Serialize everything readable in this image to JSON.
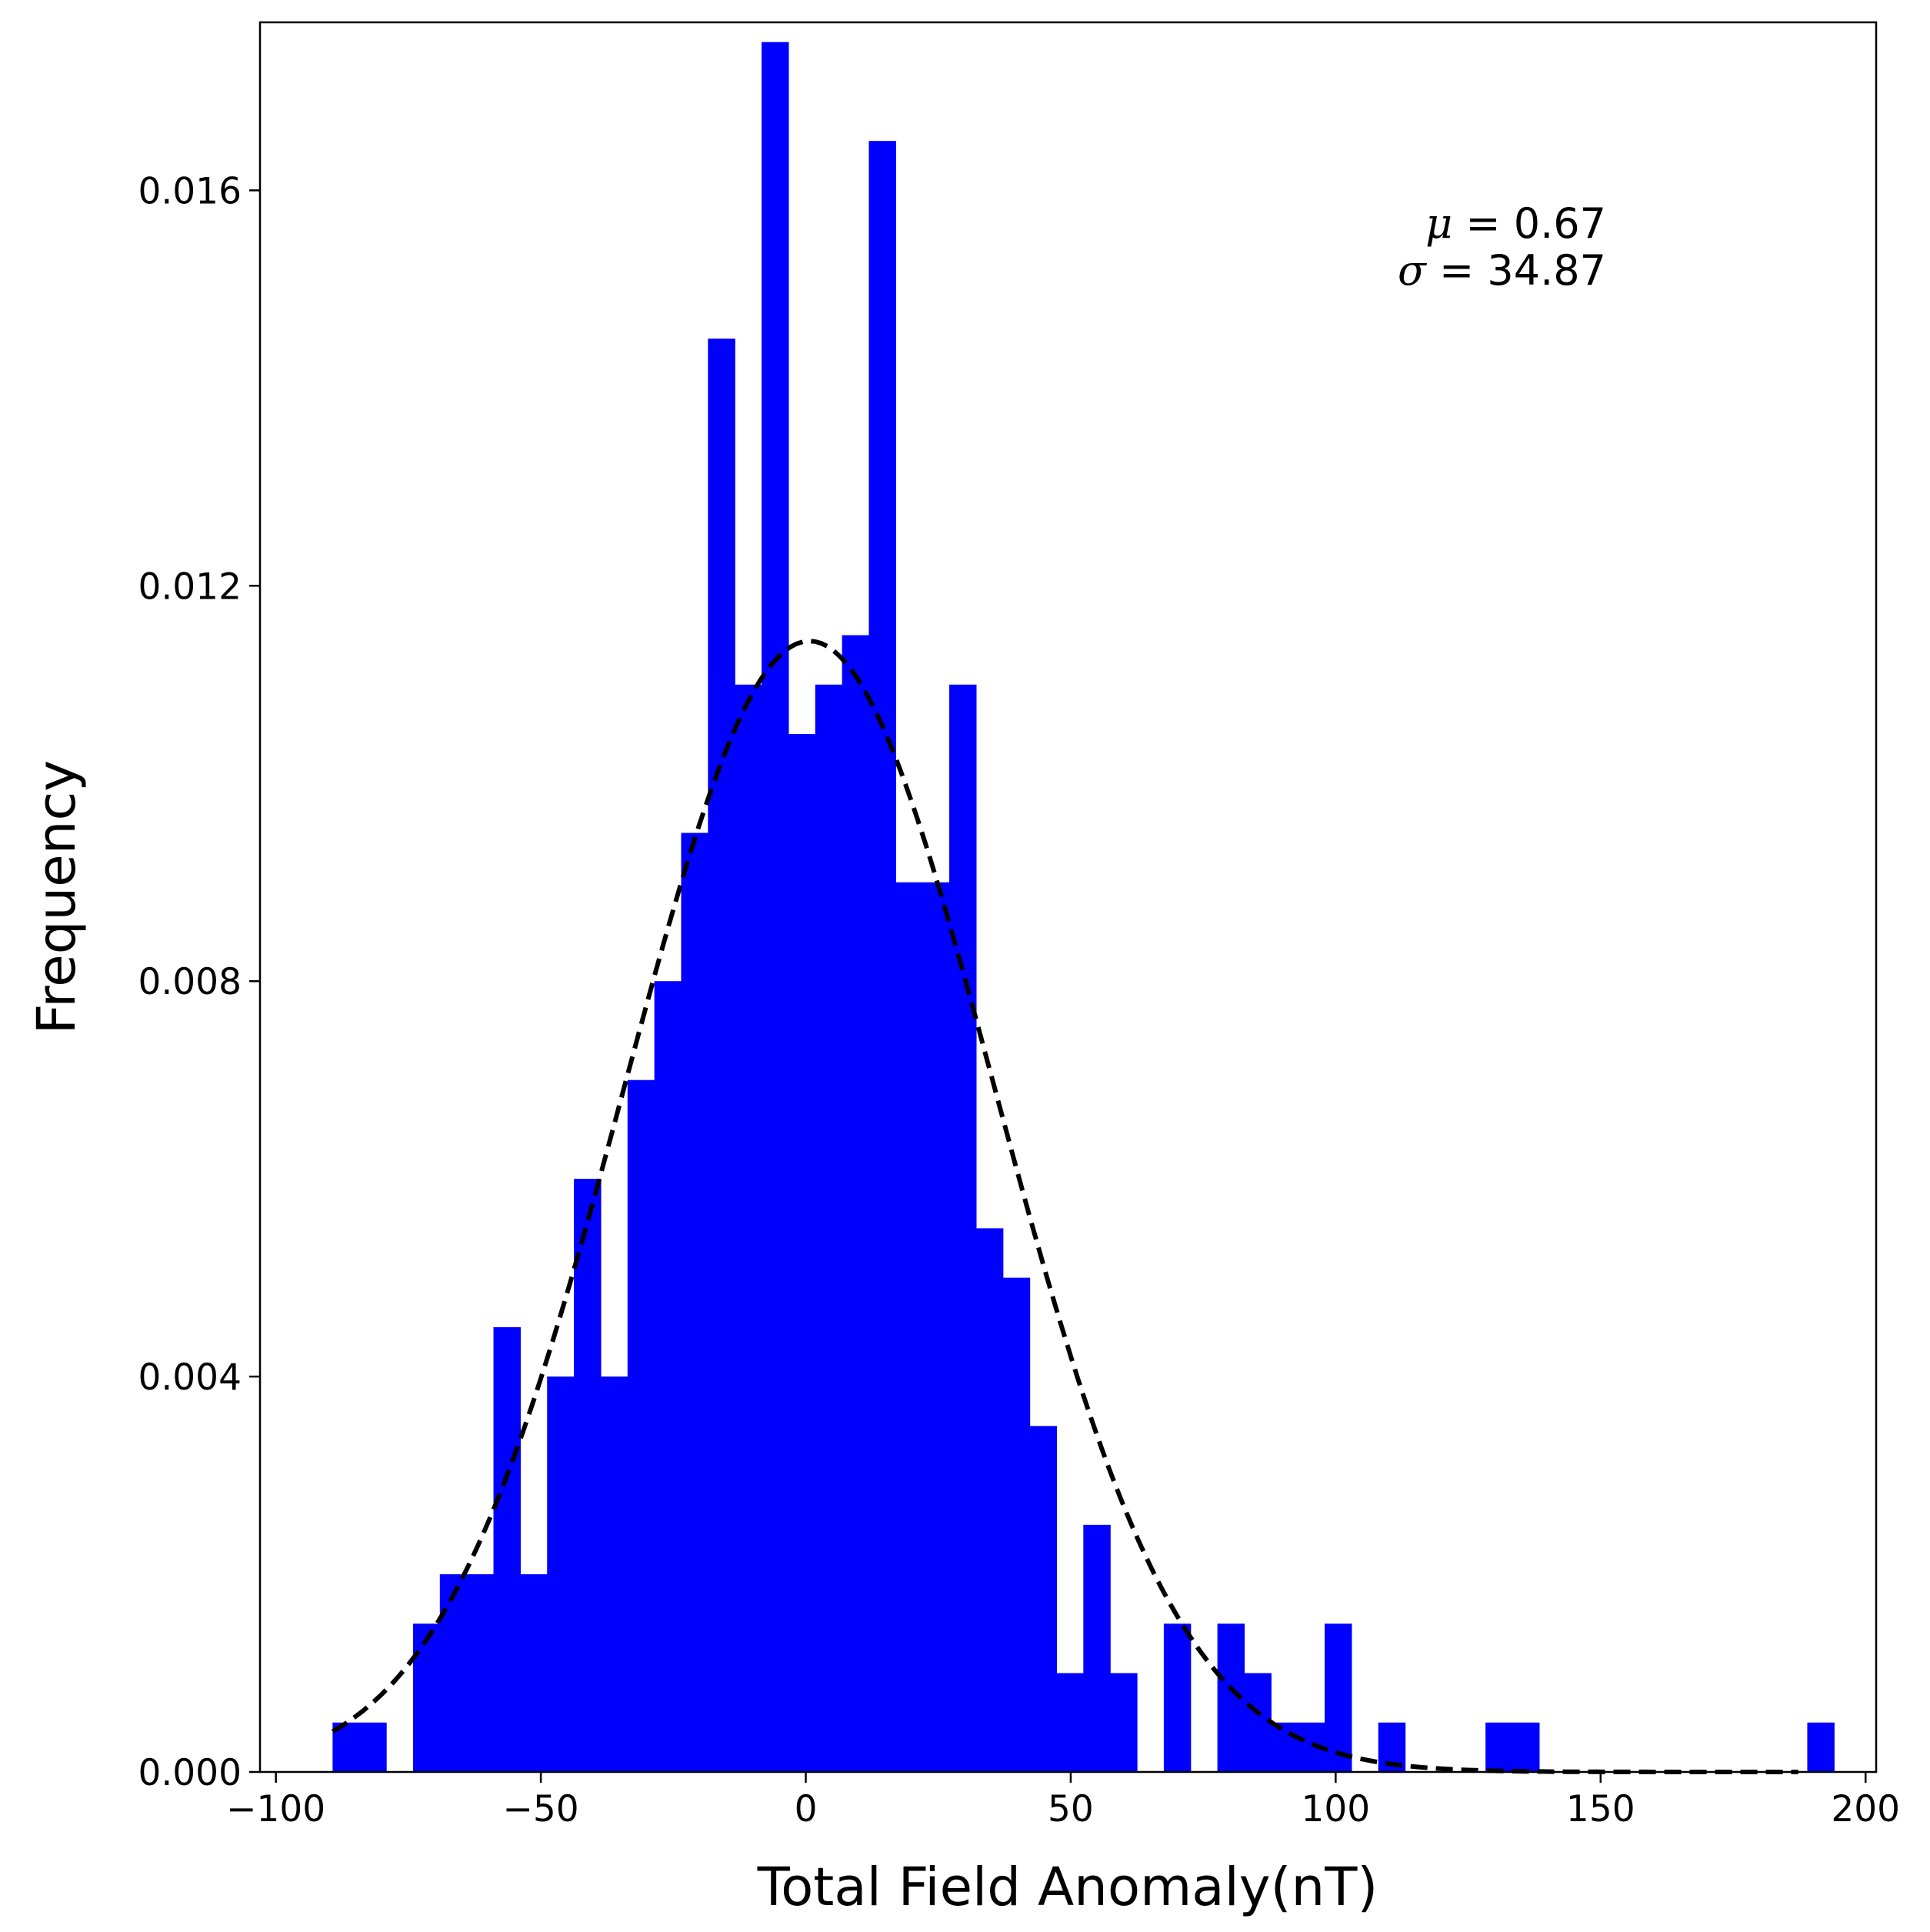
{
  "chart_data": {
    "type": "bar",
    "subtype": "histogram",
    "xlabel": "Total Field Anomaly(nT)",
    "ylabel": "Frequency",
    "xlim": [
      -103,
      202
    ],
    "ylim": [
      0,
      0.0177
    ],
    "xticks": [
      -100,
      -50,
      0,
      50,
      100,
      150,
      200
    ],
    "xtick_labels": [
      "−100",
      "−50",
      "0",
      "50",
      "100",
      "150",
      "200"
    ],
    "yticks": [
      0,
      0.004,
      0.008,
      0.012,
      0.016
    ],
    "ytick_labels": [
      "0.000",
      "0.004",
      "0.008",
      "0.012",
      "0.016"
    ],
    "grid": false,
    "bar_color": "#0000ff",
    "bins": {
      "start": -89.3,
      "width": 5.06,
      "values": [
        0.0005,
        0.0005,
        0,
        0.0015,
        0.002,
        0.002,
        0.0045,
        0.002,
        0.004,
        0.006,
        0.004,
        0.007,
        0.008,
        0.0095,
        0.0145,
        0.011,
        0.0175,
        0.0105,
        0.011,
        0.0115,
        0.0165,
        0.009,
        0.009,
        0.011,
        0.0055,
        0.005,
        0.0035,
        0.001,
        0.0025,
        0.001,
        0,
        0.0015,
        0,
        0.0015,
        0.001,
        0.0005,
        0.0005,
        0.0015,
        0,
        0.0005,
        0,
        0,
        0,
        0.0005,
        0.0005,
        0,
        0,
        0,
        0,
        0,
        0,
        0,
        0,
        0,
        0,
        0.0005
      ]
    },
    "fit": {
      "type": "normal-pdf",
      "mu": 0.67,
      "sigma": 34.87,
      "x_range": [
        -89.3,
        187.3
      ],
      "line_color": "#000000",
      "line_style": "dashed"
    },
    "annotation": {
      "mu_symbol": "μ",
      "mu_text": " = 0.67",
      "sigma_symbol": "σ",
      "sigma_text": " = 34.87"
    }
  }
}
